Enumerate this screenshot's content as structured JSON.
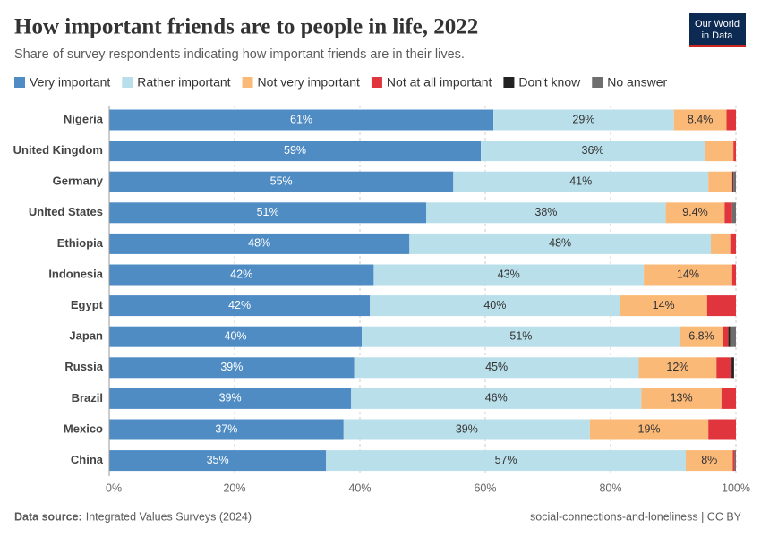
{
  "logo": [
    "Our World",
    "in Data"
  ],
  "chart_data": {
    "type": "stacked-bar-horizontal",
    "title": "How important friends are to people in life, 2022",
    "subtitle": "Share of survey respondents indicating how important friends are in their lives.",
    "source_label": "Data source:",
    "source": "Integrated Values Surveys (2024)",
    "footer_right": "social-connections-and-loneliness | CC BY",
    "categories": [
      "Nigeria",
      "United Kingdom",
      "Germany",
      "United States",
      "Ethiopia",
      "Indonesia",
      "Egypt",
      "Japan",
      "Russia",
      "Brazil",
      "Mexico",
      "China"
    ],
    "xlim": [
      0,
      100
    ],
    "xticks": [
      {
        "value": 0,
        "label": "0%"
      },
      {
        "value": 20,
        "label": "20%"
      },
      {
        "value": 40,
        "label": "40%"
      },
      {
        "value": 60,
        "label": "60%"
      },
      {
        "value": 80,
        "label": "80%"
      },
      {
        "value": 100,
        "label": "100%"
      }
    ],
    "grid": true,
    "legend": "top",
    "series": [
      {
        "name": "Very important",
        "color": "#4f8cc4",
        "label_color": "#ffffff",
        "values": [
          61.3,
          59.3,
          54.9,
          50.6,
          47.9,
          42.2,
          41.6,
          40.3,
          39.1,
          38.6,
          37.4,
          34.6
        ],
        "value_labels": [
          "61%",
          "59%",
          "55%",
          "51%",
          "48%",
          "42%",
          "42%",
          "40%",
          "39%",
          "39%",
          "37%",
          "35%"
        ]
      },
      {
        "name": "Rather important",
        "color": "#b9dfeb",
        "label_color": "#333333",
        "values": [
          28.8,
          35.7,
          40.7,
          38.2,
          48.1,
          43.1,
          39.9,
          50.8,
          45.4,
          46.3,
          39.3,
          57.4
        ],
        "value_labels": [
          "29%",
          "36%",
          "41%",
          "38%",
          "48%",
          "43%",
          "40%",
          "51%",
          "45%",
          "46%",
          "39%",
          "57%"
        ]
      },
      {
        "name": "Not very important",
        "color": "#fbb978",
        "label_color": "#333333",
        "values": [
          8.4,
          4.6,
          3.8,
          9.4,
          3.1,
          14.1,
          13.9,
          6.8,
          12.4,
          12.8,
          18.9,
          7.5
        ],
        "value_labels": [
          "8.4%",
          null,
          null,
          "9.4%",
          null,
          "14%",
          "14%",
          "6.8%",
          "12%",
          "13%",
          "19%",
          "8%"
        ]
      },
      {
        "name": "Not at all important",
        "color": "#e0353d",
        "label_color": "#333333",
        "values": [
          1.5,
          0.4,
          0.1,
          1.2,
          0.9,
          0.6,
          4.6,
          0.9,
          2.4,
          2.3,
          4.4,
          0.3
        ]
      },
      {
        "name": "Don't know",
        "color": "#222222",
        "label_color": "#333333",
        "values": [
          0,
          0,
          0.1,
          0,
          0,
          0,
          0,
          0.3,
          0.4,
          0,
          0,
          0
        ]
      },
      {
        "name": "No answer",
        "color": "#6e6e6e",
        "label_color": "#333333",
        "values": [
          0,
          0,
          0.4,
          0.6,
          0,
          0,
          0,
          0.9,
          0,
          0,
          0,
          0.2
        ]
      }
    ]
  }
}
